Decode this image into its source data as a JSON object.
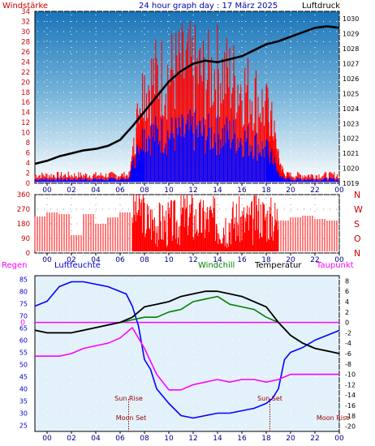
{
  "chart_data": [
    {
      "type": "line",
      "title": "24 hour graph day : 17 März 2025",
      "left_label": "Windstärke",
      "right_label": "Luftdruck",
      "x_ticks": [
        "00",
        "02",
        "04",
        "06",
        "08",
        "10",
        "12",
        "14",
        "16",
        "18",
        "20",
        "22",
        "00"
      ],
      "x_range_hours": [
        -1,
        24
      ],
      "y_left": {
        "ticks": [
          0,
          2,
          4,
          6,
          8,
          10,
          12,
          14,
          16,
          18,
          20,
          22,
          24,
          26,
          28,
          30,
          32,
          34
        ],
        "range": [
          0,
          34
        ]
      },
      "y_right": {
        "ticks": [
          1019,
          1020,
          1021,
          1022,
          1023,
          1024,
          1025,
          1026,
          1027,
          1028,
          1029,
          1030
        ],
        "range": [
          1019,
          1030.5
        ]
      },
      "grid": true,
      "series": [
        {
          "name": "Windstärke gust",
          "color": "#ff0000",
          "x": [
            -1,
            0,
            1,
            2,
            3,
            4,
            5,
            6,
            6.8,
            7.0,
            7.5,
            8,
            9,
            10,
            11,
            12,
            13,
            14,
            15,
            16,
            17,
            18,
            18.5,
            19,
            19.5,
            20,
            21,
            22,
            23,
            24
          ],
          "y": [
            2,
            2,
            2,
            2,
            2,
            2,
            2,
            2,
            2,
            6,
            17,
            24,
            26,
            27,
            28,
            28,
            26,
            28,
            26,
            24,
            22,
            18,
            14,
            6,
            2,
            2,
            2,
            2,
            2,
            2
          ]
        },
        {
          "name": "Windstärke mean",
          "color": "#0000ff",
          "x": [
            -1,
            0,
            1,
            2,
            3,
            4,
            5,
            6,
            6.8,
            7.0,
            7.5,
            8,
            9,
            10,
            11,
            12,
            13,
            14,
            15,
            16,
            17,
            18,
            18.5,
            19,
            19.5,
            20,
            21,
            22,
            23,
            24
          ],
          "y": [
            1,
            1,
            1,
            1,
            1,
            1,
            1,
            1,
            1,
            4,
            8,
            12,
            12,
            12,
            12,
            13,
            12,
            12,
            12,
            11,
            10,
            8,
            6,
            2,
            1,
            1,
            1,
            1,
            1,
            1
          ]
        },
        {
          "name": "Luftdruck",
          "color": "#000000",
          "x": [
            -1,
            0,
            1,
            2,
            3,
            4,
            5,
            6,
            7,
            8,
            9,
            10,
            11,
            12,
            13,
            14,
            15,
            16,
            17,
            18,
            19,
            20,
            21,
            22,
            23,
            24
          ],
          "y": [
            1020.3,
            1020.5,
            1020.8,
            1021.0,
            1021.2,
            1021.3,
            1021.5,
            1021.9,
            1022.8,
            1023.8,
            1024.8,
            1025.8,
            1026.5,
            1027.0,
            1027.2,
            1027.1,
            1027.3,
            1027.5,
            1027.9,
            1028.3,
            1028.5,
            1028.8,
            1029.1,
            1029.4,
            1029.5,
            1029.4
          ]
        }
      ]
    },
    {
      "type": "scatter",
      "title": "",
      "x_ticks": [
        "00",
        "02",
        "04",
        "06",
        "08",
        "10",
        "12",
        "14",
        "16",
        "18",
        "20",
        "22",
        "00"
      ],
      "x_range_hours": [
        -1,
        24
      ],
      "y_left": {
        "ticks": [
          0,
          90,
          180,
          270,
          360
        ],
        "range": [
          0,
          360
        ]
      },
      "compass_labels": [
        "N",
        "W",
        "S",
        "O",
        "N"
      ],
      "grid": true,
      "series": [
        {
          "name": "Windrichtung",
          "color": "#ff0000",
          "x": [
            -1,
            0,
            1,
            2,
            3,
            4,
            5,
            6,
            7,
            8,
            9,
            10,
            11,
            12,
            13,
            14,
            15,
            16,
            17,
            18,
            19,
            20,
            21,
            22,
            23,
            24
          ],
          "y": [
            225,
            250,
            240,
            110,
            240,
            180,
            220,
            250,
            270,
            200,
            180,
            190,
            240,
            200,
            210,
            180,
            200,
            190,
            230,
            210,
            200,
            220,
            230,
            210,
            200,
            220
          ]
        }
      ]
    },
    {
      "type": "line",
      "title": "",
      "legend": [
        "Regen",
        "Luftfeuchte",
        "Windchill",
        "Temperatur",
        "Taupunkt"
      ],
      "x_ticks": [
        "00",
        "02",
        "04",
        "06",
        "08",
        "10",
        "12",
        "14",
        "16",
        "18",
        "20",
        "22",
        "00"
      ],
      "x_range_hours": [
        -1,
        24
      ],
      "y_left": {
        "ticks": [
          25,
          30,
          35,
          40,
          45,
          50,
          55,
          60,
          65,
          70,
          75,
          80,
          85
        ],
        "range": [
          22.5,
          86.5
        ]
      },
      "y_right": {
        "ticks": [
          8,
          6,
          4,
          2,
          0,
          -2,
          -4,
          -6,
          -8,
          -10,
          -12,
          -14,
          -16,
          -18,
          -20
        ],
        "range": [
          -21,
          9
        ]
      },
      "rain_axis_label": "0",
      "annotations": [
        {
          "text": "Sun Rise",
          "hour": 6.7
        },
        {
          "text": "Moon Set",
          "hour": 6.9
        },
        {
          "text": "Sun Set",
          "hour": 18.3
        },
        {
          "text": "Moon Rise",
          "hour": 23.5
        }
      ],
      "grid": true,
      "series": [
        {
          "name": "Luftfeuchte",
          "color": "#0000ff",
          "x": [
            -1,
            0,
            1,
            2,
            3,
            4,
            5,
            6,
            6.5,
            7,
            7.5,
            8,
            8.5,
            9,
            10,
            11,
            12,
            13,
            14,
            15,
            16,
            17,
            18,
            18.5,
            19,
            19.5,
            20,
            21,
            22,
            23,
            24
          ],
          "y": [
            74,
            76,
            82,
            84,
            84,
            83,
            82,
            80,
            79,
            74,
            66,
            52,
            48,
            40,
            34,
            29,
            28,
            29,
            30,
            30,
            31,
            32,
            34,
            36,
            40,
            52,
            55,
            57,
            60,
            62,
            64
          ]
        },
        {
          "name": "Temperatur",
          "color": "#000000",
          "x": [
            -1,
            0,
            1,
            2,
            3,
            4,
            5,
            6,
            7,
            8,
            9,
            10,
            11,
            12,
            13,
            14,
            15,
            16,
            17,
            18,
            19,
            20,
            21,
            22,
            23,
            24
          ],
          "y": [
            -1.5,
            -2,
            -2,
            -2,
            -1.5,
            -1,
            -0.5,
            0,
            1,
            3,
            3.5,
            4,
            5,
            5.5,
            6,
            6,
            5.5,
            5,
            4,
            3,
            0,
            -2.5,
            -4,
            -5,
            -5.5,
            -6
          ]
        },
        {
          "name": "Windchill",
          "color": "#008000",
          "x": [
            -1,
            0,
            1,
            2,
            3,
            4,
            5,
            6,
            7,
            8,
            9,
            10,
            11,
            12,
            13,
            14,
            15,
            16,
            17,
            18,
            19,
            20,
            21,
            22,
            23,
            24
          ],
          "y": [
            -1.5,
            -2,
            -2,
            -2,
            -1.5,
            -1,
            -0.5,
            0,
            0.5,
            1,
            1,
            2,
            2.5,
            4,
            4.5,
            5,
            3.5,
            3,
            2.5,
            1,
            0,
            -2.5,
            -4,
            -5,
            -5.5,
            -6
          ]
        },
        {
          "name": "Taupunkt",
          "color": "#ff00ff",
          "x": [
            -1,
            0,
            1,
            2,
            3,
            4,
            5,
            6,
            7,
            8,
            9,
            10,
            11,
            12,
            13,
            14,
            15,
            16,
            17,
            18,
            19,
            20,
            21,
            22,
            23,
            24
          ],
          "y": [
            -6.5,
            -6.5,
            -6.5,
            -6,
            -5,
            -4.5,
            -4,
            -3,
            -1,
            -5,
            -10,
            -13,
            -13,
            -12,
            -11.5,
            -11,
            -11.5,
            -11,
            -11,
            -11.5,
            -11,
            -10,
            -10,
            -10,
            -10,
            -10
          ]
        },
        {
          "name": "Regen",
          "color": "#ff00ff",
          "x": [
            -1,
            24
          ],
          "y": [
            0,
            0
          ]
        }
      ]
    }
  ]
}
